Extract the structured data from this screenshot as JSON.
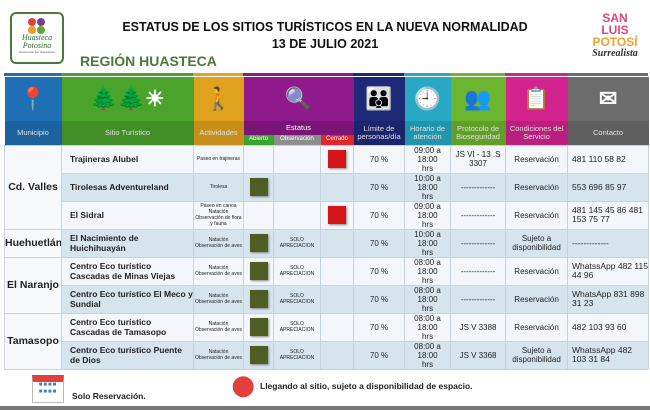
{
  "header": {
    "title": "ESTATUS DE LOS SITIOS TURÍSTICOS EN LA NUEVA NORMALIDAD",
    "date": "13 DE JULIO 2021",
    "region": "REGIÓN HUASTECA",
    "logo_left": "Huasteca Potosina",
    "logo_right": "SAN LUIS POTOSÍ Surrealista"
  },
  "columns": [
    {
      "label": "Municipio",
      "icon": "map-pin-icon",
      "color": "#1f6fb4"
    },
    {
      "label": "Sitio Turístico",
      "icon": "trees-sun-water-icon",
      "color": "#4aa32b"
    },
    {
      "label": "Actividades",
      "icon": "hiker-icon",
      "color": "#e0a21c"
    },
    {
      "label": "Estatus",
      "icon": "search-icon",
      "color": "#8e1a8c"
    },
    {
      "label": "Límite de personas/día",
      "icon": "family-icon",
      "color": "#1e2a78"
    },
    {
      "label": "Horario de atención",
      "icon": "clock-icon",
      "color": "#27a9c6"
    },
    {
      "label": "Protocolo de Bioseguridad",
      "icon": "people-shield-icon",
      "color": "#6db52e"
    },
    {
      "label": "Condiciones del Servicio",
      "icon": "checklist-icon",
      "color": "#d3238f"
    },
    {
      "label": "Contacto",
      "icon": "envelope-info-icon",
      "color": "#6c6c6c"
    }
  ],
  "status_cols": {
    "abierto": "Abierto",
    "observacion": "Observación",
    "cerrado": "Cerrado",
    "abierto_color": "#3aa52f",
    "observacion_color": "#8d8d8d",
    "cerrado_color": "#e3262a"
  },
  "status_colors": {
    "open": "#4e5e22",
    "closed": "#d4161a"
  },
  "groups": [
    {
      "municipio": "Cd. Valles",
      "sites": [
        {
          "name": "Trajineras Alubel",
          "activities": "Paseo en trajineras",
          "status": "cerrado",
          "observacion": "",
          "limite": "70 %",
          "horario": "09:00 a 18:00 hrs",
          "protocolo": "JS VI - 13 .S 3307",
          "condiciones": "Reservación",
          "contacto": "481 110 58 82"
        },
        {
          "name": "Tirolesas Adventureland",
          "activities": "Tirolesa",
          "status": "abierto",
          "observacion": "",
          "limite": "70 %",
          "horario": "10:00 a 18:00 hrs",
          "protocolo": "-------------",
          "condiciones": "Reservación",
          "contacto": "553 696 85 97"
        },
        {
          "name": "El Sidral",
          "activities": "Paseo en canoa Natación Observación de flora y fauna",
          "status": "cerrado",
          "observacion": "",
          "limite": "70 %",
          "horario": "09:00 a 18:00 hrs",
          "protocolo": "-------------",
          "condiciones": "Reservación",
          "contacto": "481 145 45 86 481 153 75 77"
        }
      ]
    },
    {
      "municipio": "Huehuetlán",
      "sites": [
        {
          "name": "El Nacimiento de Huichihuayán",
          "activities": "Natación Observación de aves",
          "status": "abierto",
          "observacion": "SOLO APRECIACION",
          "limite": "70 %",
          "horario": "10:00 a 18:00 hrs",
          "protocolo": "-------------",
          "condiciones": "Sujeto a disponibilidad",
          "contacto": "-------------"
        }
      ]
    },
    {
      "municipio": "El Naranjo",
      "sites": [
        {
          "name": "Centro Eco turístico Cascadas de Minas Viejas",
          "activities": "Natación Observación de aves",
          "status": "abierto",
          "observacion": "SOLO APRECIACION",
          "limite": "70 %",
          "horario": "08:00 a 18:00 hrs",
          "protocolo": "-------------",
          "condiciones": "Reservación",
          "contacto": "WhatssApp 482 115 44 96"
        },
        {
          "name": "Centro Eco turístico El Meco y Sundial",
          "activities": "Natación Observación de aves",
          "status": "abierto",
          "observacion": "SOLO APRECIACION",
          "limite": "70 %",
          "horario": "08:00 a 18:00 hrs",
          "protocolo": "-------------",
          "condiciones": "Reservación",
          "contacto": "WhatsApp 831 898 31 23"
        }
      ]
    },
    {
      "municipio": "Tamasopo",
      "sites": [
        {
          "name": "Centro Eco turístico Cascadas de Tamasopo",
          "activities": "Natación Observación de aves",
          "status": "abierto",
          "observacion": "SOLO APRECIACION",
          "limite": "70 %",
          "horario": "08:00 a 18:00 hrs",
          "protocolo": "JS V 3388",
          "condiciones": "Reservación",
          "contacto": "482 103 93 60"
        },
        {
          "name": "Centro Eco turístico Puente de Dios",
          "activities": "Natación Observación de aves",
          "status": "abierto",
          "observacion": "SOLO APRECIACION",
          "limite": "70 %",
          "horario": "08:00 a 18:00 hrs",
          "protocolo": "JS V 3368",
          "condiciones": "Sujeto a disponibilidad",
          "contacto": "WhatssApp 482 103 31 84"
        }
      ]
    }
  ],
  "legend": {
    "reservation": "Solo Reservación.",
    "arrival": "Llegando al sitio, sujeto a disponibilidad de espacio."
  }
}
